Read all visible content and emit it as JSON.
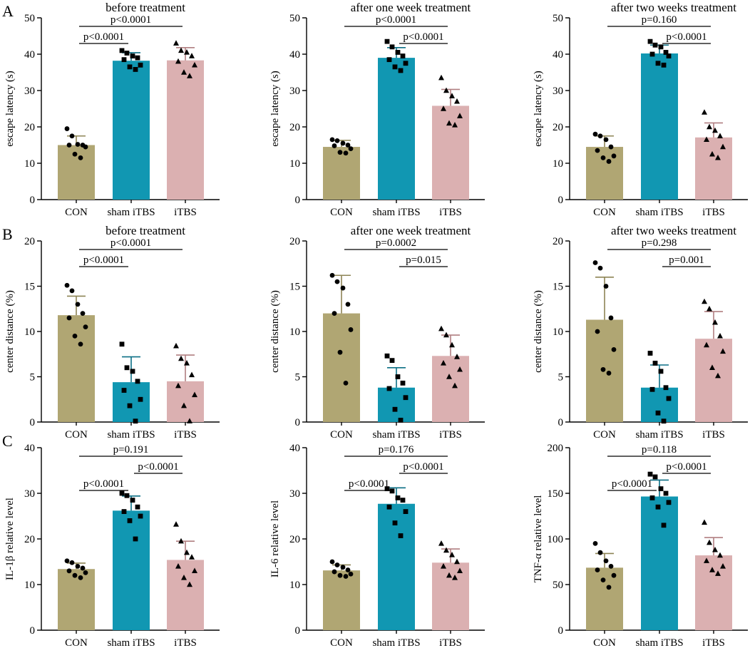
{
  "colors": {
    "CON": "#b0a673",
    "sham iTBS": "#1197b2",
    "iTBS": "#dbb0b1",
    "errCON": "#8d8455",
    "errSham": "#0c6f85",
    "errITBS": "#b07f81"
  },
  "chart_data": [
    {
      "id": "A1",
      "type": "bar",
      "row_label": "A",
      "title": "before treatment",
      "ylabel": "escape latency (s)",
      "ylim": [
        0,
        50
      ],
      "yticks": [
        0,
        10,
        20,
        30,
        40,
        50
      ],
      "categories": [
        "CON",
        "sham iTBS",
        "iTBS"
      ],
      "values": [
        15.0,
        38.2,
        38.3
      ],
      "errors": [
        2.5,
        2.2,
        3.5
      ],
      "markers": [
        "circle",
        "square",
        "triangle"
      ],
      "points": [
        [
          19.5,
          17.5,
          15.2,
          15.0,
          15.0,
          14.5,
          12.5,
          11.5
        ],
        [
          41.0,
          40.3,
          39.5,
          39.0,
          38.5,
          37.0,
          36.5,
          35.8
        ],
        [
          43.0,
          41.0,
          40.5,
          39.5,
          38.0,
          37.0,
          35.0,
          34.0
        ]
      ],
      "comparisons": [
        {
          "from": 0,
          "to": 1,
          "label": "p<0.0001"
        },
        {
          "from": 0,
          "to": 2,
          "label": "p<0.0001"
        }
      ]
    },
    {
      "id": "A2",
      "type": "bar",
      "title": "after one week treatment",
      "ylabel": "escape latency (s)",
      "ylim": [
        0,
        50
      ],
      "yticks": [
        0,
        10,
        20,
        30,
        40,
        50
      ],
      "categories": [
        "CON",
        "sham iTBS",
        "iTBS"
      ],
      "values": [
        14.5,
        39.0,
        25.8
      ],
      "errors": [
        1.8,
        2.8,
        4.5
      ],
      "markers": [
        "circle",
        "square",
        "triangle"
      ],
      "points": [
        [
          16.5,
          16.2,
          15.5,
          15.0,
          14.8,
          14.0,
          13.0,
          12.8
        ],
        [
          43.5,
          42.0,
          40.5,
          39.5,
          38.5,
          37.5,
          36.5,
          35.5
        ],
        [
          33.5,
          30.0,
          28.5,
          27.0,
          25.0,
          23.0,
          21.0,
          20.5
        ]
      ],
      "comparisons": [
        {
          "from": 1,
          "to": 2,
          "label": "p<0.0001"
        },
        {
          "from": 0,
          "to": 2,
          "label": "p<0.0001"
        }
      ]
    },
    {
      "id": "A3",
      "type": "bar",
      "title": "after two weeks treatment",
      "ylabel": "escape latency (s)",
      "ylim": [
        0,
        50
      ],
      "yticks": [
        0,
        10,
        20,
        30,
        40,
        50
      ],
      "categories": [
        "CON",
        "sham iTBS",
        "iTBS"
      ],
      "values": [
        14.5,
        40.2,
        17.1
      ],
      "errors": [
        3.0,
        2.3,
        4.0
      ],
      "markers": [
        "circle",
        "square",
        "triangle"
      ],
      "points": [
        [
          18.0,
          17.5,
          16.5,
          14.5,
          13.5,
          12.0,
          11.5,
          10.5
        ],
        [
          43.5,
          42.5,
          42.0,
          40.5,
          40.0,
          39.5,
          37.5,
          37.0
        ],
        [
          24.0,
          20.0,
          19.0,
          17.5,
          16.5,
          14.5,
          12.5,
          11.5
        ]
      ],
      "comparisons": [
        {
          "from": 1,
          "to": 2,
          "label": "p<0.0001"
        },
        {
          "from": 0,
          "to": 2,
          "label": "p=0.160"
        }
      ]
    },
    {
      "id": "B1",
      "type": "bar",
      "row_label": "B",
      "title": "before treatment",
      "ylabel": "center distance (%)",
      "ylim": [
        0,
        20
      ],
      "yticks": [
        0,
        5,
        10,
        15,
        20
      ],
      "categories": [
        "CON",
        "sham iTBS",
        "iTBS"
      ],
      "values": [
        11.8,
        4.4,
        4.5
      ],
      "errors": [
        2.1,
        2.8,
        2.9
      ],
      "markers": [
        "circle",
        "square",
        "triangle"
      ],
      "points": [
        [
          15.1,
          14.5,
          13.0,
          12.0,
          11.5,
          10.5,
          9.5,
          8.6
        ],
        [
          8.6,
          6.0,
          5.6,
          4.5,
          3.5,
          2.5,
          1.8,
          0.1
        ],
        [
          8.4,
          7.0,
          6.5,
          5.2,
          4.0,
          3.0,
          1.8,
          0.1
        ]
      ],
      "comparisons": [
        {
          "from": 0,
          "to": 1,
          "label": "p<0.0001"
        },
        {
          "from": 0,
          "to": 2,
          "label": "p<0.0001"
        }
      ]
    },
    {
      "id": "B2",
      "type": "bar",
      "title": "after one week treatment",
      "ylabel": "center distance (%)",
      "ylim": [
        0,
        20
      ],
      "yticks": [
        0,
        5,
        10,
        15,
        20
      ],
      "categories": [
        "CON",
        "sham iTBS",
        "iTBS"
      ],
      "values": [
        12.0,
        3.8,
        7.3
      ],
      "errors": [
        4.2,
        2.2,
        2.3
      ],
      "markers": [
        "circle",
        "square",
        "triangle"
      ],
      "points": [
        [
          16.2,
          15.5,
          14.8,
          13.0,
          12.0,
          10.2,
          7.7,
          4.3
        ],
        [
          7.3,
          6.8,
          5.0,
          4.3,
          3.7,
          2.7,
          1.4,
          0.2
        ],
        [
          10.3,
          9.6,
          8.5,
          7.2,
          6.5,
          5.8,
          5.0,
          4.0
        ]
      ],
      "comparisons": [
        {
          "from": 1,
          "to": 2,
          "label": "p=0.015"
        },
        {
          "from": 0,
          "to": 2,
          "label": "p=0.0002"
        }
      ]
    },
    {
      "id": "B3",
      "type": "bar",
      "title": "after two weeks treatment",
      "ylabel": "center distance (%)",
      "ylim": [
        0,
        20
      ],
      "yticks": [
        0,
        5,
        10,
        15,
        20
      ],
      "categories": [
        "CON",
        "sham iTBS",
        "iTBS"
      ],
      "values": [
        11.3,
        3.8,
        9.2
      ],
      "errors": [
        4.7,
        2.5,
        3.0
      ],
      "markers": [
        "circle",
        "square",
        "triangle"
      ],
      "points": [
        [
          17.6,
          17.0,
          15.0,
          11.5,
          10.0,
          8.0,
          5.8,
          5.4
        ],
        [
          7.6,
          6.5,
          5.6,
          3.8,
          3.6,
          2.6,
          1.0,
          0.1
        ],
        [
          13.3,
          12.5,
          11.0,
          9.5,
          8.5,
          7.8,
          6.0,
          5.1
        ]
      ],
      "comparisons": [
        {
          "from": 1,
          "to": 2,
          "label": "p=0.001"
        },
        {
          "from": 0,
          "to": 2,
          "label": "p=0.298"
        }
      ]
    },
    {
      "id": "C1",
      "type": "bar",
      "row_label": "C",
      "title": "",
      "ylabel": "IL-1β relative level",
      "ylim": [
        0,
        40
      ],
      "yticks": [
        0,
        10,
        20,
        30,
        40
      ],
      "categories": [
        "CON",
        "sham iTBS",
        "iTBS"
      ],
      "values": [
        13.4,
        26.2,
        15.4
      ],
      "errors": [
        1.3,
        3.2,
        4.1
      ],
      "markers": [
        "circle",
        "square",
        "triangle"
      ],
      "points": [
        [
          15.2,
          14.8,
          14.0,
          13.6,
          13.0,
          12.6,
          12.0,
          11.5
        ],
        [
          30.0,
          29.5,
          28.5,
          27.0,
          26.0,
          25.0,
          24.0,
          20.0
        ],
        [
          23.2,
          19.5,
          17.0,
          16.0,
          14.0,
          13.0,
          11.5,
          10.0
        ]
      ],
      "comparisons": [
        {
          "from": 0,
          "to": 1,
          "label": "p<0.0001"
        },
        {
          "from": 1,
          "to": 2,
          "label": "p<0.0001"
        },
        {
          "from": 0,
          "to": 2,
          "label": "p=0.191"
        }
      ]
    },
    {
      "id": "C2",
      "type": "bar",
      "title": "",
      "ylabel": "IL-6 relative level",
      "ylim": [
        0,
        40
      ],
      "yticks": [
        0,
        10,
        20,
        30,
        40
      ],
      "categories": [
        "CON",
        "sham iTBS",
        "iTBS"
      ],
      "values": [
        13.1,
        27.7,
        14.8
      ],
      "errors": [
        1.2,
        3.5,
        3.0
      ],
      "markers": [
        "circle",
        "square",
        "triangle"
      ],
      "points": [
        [
          15.0,
          14.3,
          13.8,
          13.2,
          12.8,
          12.3,
          12.0,
          11.8
        ],
        [
          31.0,
          30.5,
          29.0,
          28.5,
          27.0,
          26.0,
          23.5,
          20.7
        ],
        [
          19.0,
          17.5,
          16.5,
          15.0,
          14.0,
          13.0,
          12.0,
          11.5
        ]
      ],
      "comparisons": [
        {
          "from": 0,
          "to": 1,
          "label": "p<0.0001"
        },
        {
          "from": 1,
          "to": 2,
          "label": "p<0.0001"
        },
        {
          "from": 0,
          "to": 2,
          "label": "p=0.176"
        }
      ]
    },
    {
      "id": "C3",
      "type": "bar",
      "title": "",
      "ylabel": "TNF-α relative level",
      "ylim": [
        0,
        200
      ],
      "yticks": [
        0,
        50,
        100,
        150,
        200
      ],
      "categories": [
        "CON",
        "sham iTBS",
        "iTBS"
      ],
      "values": [
        68.5,
        146.5,
        82.0
      ],
      "errors": [
        15.5,
        18.0,
        19.5
      ],
      "markers": [
        "circle",
        "square",
        "triangle"
      ],
      "points": [
        [
          95.0,
          85.0,
          76.0,
          70.0,
          66.0,
          60.0,
          55.0,
          47.0
        ],
        [
          171.0,
          168.0,
          155.0,
          150.0,
          145.0,
          140.0,
          135.0,
          115.0
        ],
        [
          118.0,
          96.0,
          88.0,
          82.0,
          76.0,
          70.0,
          66.0,
          62.0
        ]
      ],
      "comparisons": [
        {
          "from": 0,
          "to": 1,
          "label": "p<0.0001"
        },
        {
          "from": 1,
          "to": 2,
          "label": "p<0.0001"
        },
        {
          "from": 0,
          "to": 2,
          "label": "p=0.118"
        }
      ]
    }
  ]
}
